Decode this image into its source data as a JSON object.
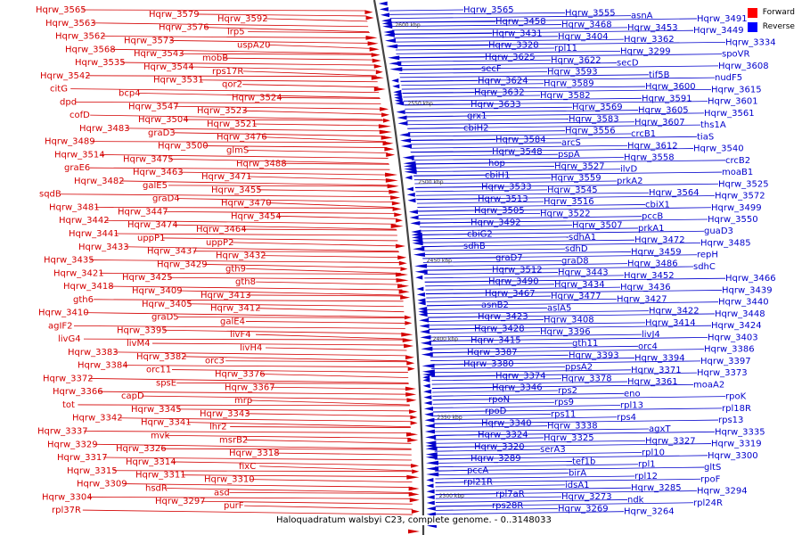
{
  "caption": "Haloquadratum walsbyi C23, complete genome. - 0..3148033",
  "legend": {
    "forward": "Forward",
    "reverse": "Reverse"
  },
  "colors": {
    "forward": "#d40000",
    "reverse": "#0000cc",
    "forward_swatch": "#ff0000",
    "reverse_swatch": "#0000ff",
    "backbone": "#444444"
  },
  "ticks": [
    "2600 kbp",
    "2550 kbp",
    "2500 kbp",
    "2450 kbp",
    "2400 kbp",
    "2350 kbp",
    "2300 kbp"
  ],
  "forward_labels": [
    "Hqrw_3565",
    "Hqrw_3579",
    "Hqrw_3592",
    "Hqrw_3563",
    "Hqrw_3576",
    "lrp5",
    "Hqrw_3562",
    "Hqrw_3573",
    "uspA20",
    "Hqrw_3568",
    "Hqrw_3543",
    "mobB",
    "Hqrw_3535",
    "Hqrw_3544",
    "rps17R",
    "Hqrw_3542",
    "Hqrw_3531",
    "qor2",
    "citG",
    "bcp4",
    "Hqrw_3524",
    "dpd",
    "Hqrw_3547",
    "Hqrw_3523",
    "cofD",
    "Hqrw_3504",
    "Hqrw_3521",
    "Hqrw_3483",
    "graD3",
    "Hqrw_3476",
    "Hqrw_3489",
    "Hqrw_3500",
    "glmS",
    "Hqrw_3514",
    "Hqrw_3475",
    "Hqrw_3488",
    "graE6",
    "Hqrw_3463",
    "Hqrw_3471",
    "Hqrw_3482",
    "galE5",
    "Hqrw_3455",
    "sqdB",
    "graD4",
    "Hqrw_3470",
    "Hqrw_3481",
    "Hqrw_3447",
    "Hqrw_3454",
    "Hqrw_3442",
    "Hqrw_3474",
    "Hqrw_3464",
    "Hqrw_3441",
    "uppP1",
    "uppP2",
    "Hqrw_3433",
    "Hqrw_3437",
    "Hqrw_3432",
    "Hqrw_3435",
    "Hqrw_3429",
    "gth9",
    "Hqrw_3421",
    "Hqrw_3425",
    "gth8",
    "Hqrw_3418",
    "Hqrw_3409",
    "Hqrw_3413",
    "gth6",
    "Hqrw_3405",
    "Hqrw_3412",
    "Hqrw_3410",
    "graD5",
    "galE4",
    "agIF2",
    "Hqrw_3395",
    "livF4",
    "livG4",
    "livM4",
    "livH4",
    "Hqrw_3383",
    "Hqrw_3382",
    "orc3",
    "Hqrw_3384",
    "orc11",
    "Hqrw_3376",
    "Hqrw_3372",
    "spsE",
    "Hqrw_3367",
    "Hqrw_3366",
    "capD",
    "mrp",
    "tot",
    "Hqrw_3345",
    "Hqrw_3343",
    "Hqrw_3342",
    "Hqrw_3341",
    "lhr2",
    "Hqrw_3337",
    "mvk",
    "msrB2",
    "Hqrw_3329",
    "Hqrw_3326",
    "Hqrw_3318",
    "Hqrw_3317",
    "Hqrw_3314",
    "fixC",
    "Hqrw_3315",
    "Hqrw_3311",
    "Hqrw_3310",
    "Hqrw_3309",
    "hsdR",
    "asd",
    "Hqrw_3304",
    "Hqrw_3297",
    "purF",
    "rpl37R"
  ],
  "reverse_labels": [
    "Hqrw_3565",
    "Hqrw_3555",
    "asnA",
    "Hqrw_3491",
    "Hqrw_3458",
    "Hqrw_3468",
    "Hqrw_3453",
    "Hqrw_3449",
    "Hqrw_3431",
    "Hqrw_3404",
    "Hqrw_3362",
    "Hqrw_3334",
    "Hqrw_3328",
    "rpl11",
    "Hqrw_3299",
    "spoVR",
    "Hqrw_3625",
    "Hqrw_3622",
    "secD",
    "Hqrw_3608",
    "secF",
    "Hqrw_3593",
    "tif5B",
    "nudF5",
    "Hqrw_3624",
    "Hqrw_3589",
    "Hqrw_3600",
    "Hqrw_3615",
    "Hqrw_3632",
    "Hqrw_3582",
    "Hqrw_3591",
    "Hqrw_3601",
    "Hqrw_3633",
    "Hqrw_3569",
    "Hqrw_3605",
    "Hqrw_3561",
    "grx1",
    "Hqrw_3583",
    "Hqrw_3607",
    "ths1A",
    "cbiH2",
    "Hqrw_3556",
    "crcB1",
    "tiaS",
    "Hqrw_3584",
    "arcS",
    "Hqrw_3612",
    "Hqrw_3540",
    "Hqrw_3548",
    "pspA",
    "Hqrw_3558",
    "crcB2",
    "hop",
    "Hqrw_3527",
    "ilvD",
    "moaB1",
    "cbiH1",
    "Hqrw_3559",
    "prkA2",
    "Hqrw_3525",
    "Hqrw_3533",
    "Hqrw_3545",
    "Hqrw_3564",
    "Hqrw_3572",
    "Hqrw_3513",
    "Hqrw_3516",
    "cbiX1",
    "Hqrw_3499",
    "Hqrw_3505",
    "Hqrw_3522",
    "pccB",
    "Hqrw_3550",
    "Hqrw_3492",
    "Hqrw_3507",
    "prkA1",
    "guaD3",
    "cbiG2",
    "sdhA1",
    "Hqrw_3472",
    "Hqrw_3485",
    "sdhB",
    "sdhD",
    "Hqrw_3459",
    "repH",
    "graD7",
    "graD8",
    "Hqrw_3486",
    "sdhC",
    "Hqrw_3512",
    "Hqrw_3443",
    "Hqrw_3452",
    "Hqrw_3466",
    "Hqrw_3490",
    "Hqrw_3434",
    "Hqrw_3436",
    "Hqrw_3439",
    "Hqrw_3467",
    "Hqrw_3477",
    "Hqrw_3427",
    "Hqrw_3440",
    "asnB2",
    "aslA5",
    "Hqrw_3422",
    "Hqrw_3448",
    "Hqrw_3423",
    "Hqrw_3408",
    "Hqrw_3414",
    "Hqrw_3424",
    "Hqrw_3428",
    "Hqrw_3396",
    "livJ4",
    "Hqrw_3403",
    "Hqrw_3415",
    "gth11",
    "orc4",
    "Hqrw_3386",
    "Hqrw_3387",
    "Hqrw_3393",
    "Hqrw_3394",
    "Hqrw_3397",
    "Hqrw_3380",
    "ppsA2",
    "Hqrw_3371",
    "Hqrw_3373",
    "Hqrw_3374",
    "Hqrw_3378",
    "Hqrw_3361",
    "moaA2",
    "Hqrw_3346",
    "rps2",
    "eno",
    "rpoK",
    "rpoN",
    "rps9",
    "rpl13",
    "rpl18R",
    "rpoD",
    "rps11",
    "rps4",
    "rps13",
    "Hqrw_3340",
    "Hqrw_3338",
    "agxT",
    "Hqrw_3335",
    "Hqrw_3324",
    "Hqrw_3325",
    "Hqrw_3327",
    "Hqrw_3319",
    "Hqrw_3320",
    "serA3",
    "rpl10",
    "Hqrw_3300",
    "Hqrw_3289",
    "tef1b",
    "rpl1",
    "gltS",
    "pccA",
    "birA",
    "rpl12",
    "rpoF",
    "rpl21R",
    "idsA1",
    "Hqrw_3285",
    "Hqrw_3294",
    "rpl7aR",
    "Hqrw_3273",
    "ndk",
    "rpl24R",
    "rps28R",
    "Hqrw_3269",
    "Hqrw_3264"
  ]
}
